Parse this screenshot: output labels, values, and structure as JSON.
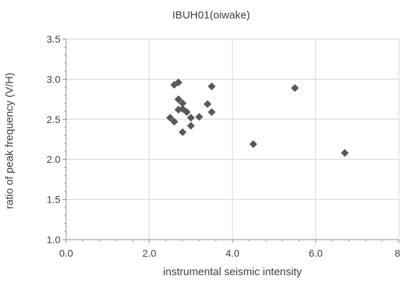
{
  "chart_data": {
    "type": "scatter",
    "title": "IBUH01(oiwake)",
    "xlabel": "instrumental seismic intensity",
    "ylabel": "ratio of peak frequency (V/H)",
    "xlim": [
      0,
      8
    ],
    "ylim": [
      1.0,
      3.5
    ],
    "x_ticks": [
      0,
      2,
      4,
      6,
      8
    ],
    "x_tick_labels": [
      "0.0",
      "2.0",
      "4.0",
      "6.0",
      "8."
    ],
    "y_ticks": [
      1.0,
      1.5,
      2.0,
      2.5,
      3.0,
      3.5
    ],
    "y_tick_labels": [
      "1.0",
      "1.5",
      "2.0",
      "2.5",
      "3.0",
      "3.5"
    ],
    "grid": true,
    "legend": false,
    "marker": "diamond",
    "marker_color": "#595959",
    "series": [
      {
        "points": [
          {
            "x": 2.6,
            "y": 2.93
          },
          {
            "x": 2.7,
            "y": 2.96
          },
          {
            "x": 3.5,
            "y": 2.91
          },
          {
            "x": 2.7,
            "y": 2.75
          },
          {
            "x": 2.8,
            "y": 2.7
          },
          {
            "x": 3.4,
            "y": 2.69
          },
          {
            "x": 2.7,
            "y": 2.62
          },
          {
            "x": 2.8,
            "y": 2.63
          },
          {
            "x": 2.9,
            "y": 2.59
          },
          {
            "x": 3.5,
            "y": 2.59
          },
          {
            "x": 2.5,
            "y": 2.52
          },
          {
            "x": 3.0,
            "y": 2.52
          },
          {
            "x": 3.2,
            "y": 2.53
          },
          {
            "x": 2.6,
            "y": 2.47
          },
          {
            "x": 3.0,
            "y": 2.42
          },
          {
            "x": 2.8,
            "y": 2.34
          },
          {
            "x": 4.5,
            "y": 2.19
          },
          {
            "x": 5.5,
            "y": 2.89
          },
          {
            "x": 6.7,
            "y": 2.08
          }
        ]
      }
    ]
  }
}
